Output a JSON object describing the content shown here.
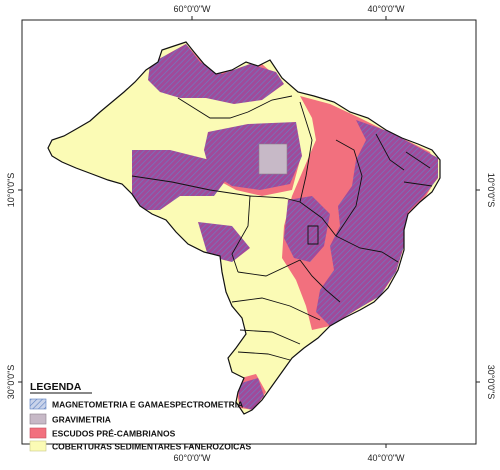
{
  "map": {
    "graticule": {
      "top": [
        "60°0'0\"W",
        "40°0'0\"W"
      ],
      "bottom": [
        "60°0'0\"W",
        "40°0'0\"W"
      ],
      "left": [
        "10°0'0\"S",
        "30°0'0\"S"
      ],
      "right": [
        "10°0'0\"S",
        "30°0'0\"S"
      ]
    },
    "legend": {
      "title": "LEGENDA",
      "items": [
        {
          "label": "MAGNETOMETRIA E GAMAESPECTROMETRIA",
          "color": "#9aa6c8",
          "pattern": "hatch-blue"
        },
        {
          "label": "GRAVIMETRIA",
          "color": "#c7b9c7",
          "pattern": "solid"
        },
        {
          "label": "ESCUDOS PRÉ-CAMBRIANOS",
          "color": "#f2707e",
          "pattern": "solid"
        },
        {
          "label": "COBERTURAS SEDIMENTARES FANEROZOICAS",
          "color": "#fbfbb5",
          "pattern": "solid"
        }
      ]
    },
    "colors": {
      "survey_overlay": "#a04a9a",
      "hatch_line": "#5a7fc0",
      "sedimentary": "#fbfbb5",
      "shield": "#f2707e",
      "gravimetry": "#c7b9c7",
      "borders": "#111111",
      "frame": "#222222"
    }
  }
}
